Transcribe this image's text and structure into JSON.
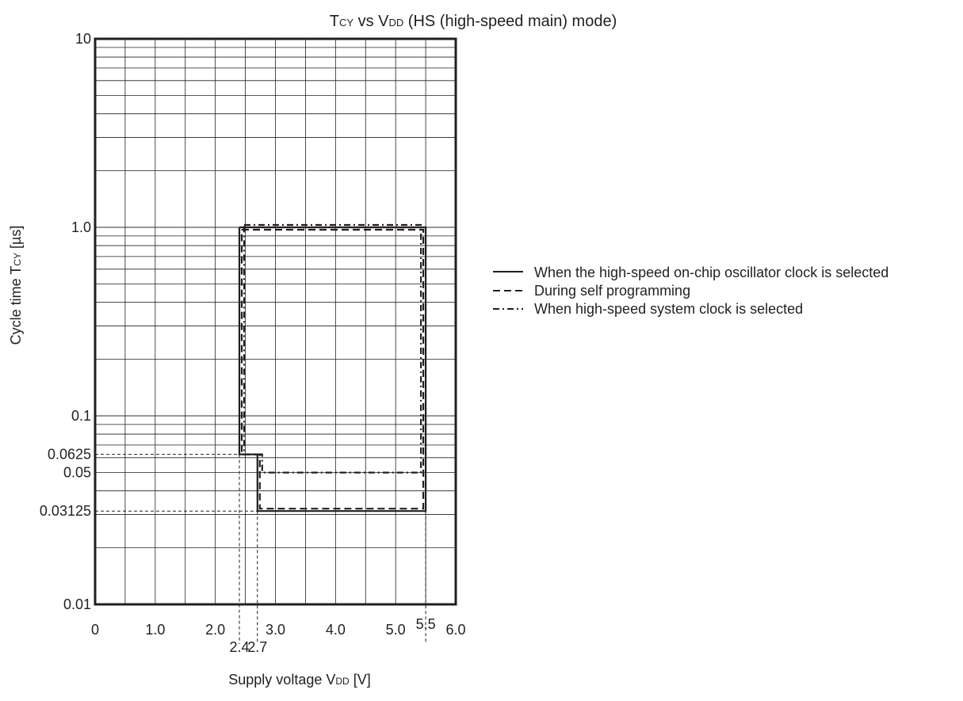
{
  "chart_data": {
    "type": "line",
    "title": {
      "t": "T",
      "t_sub": "CY",
      "vs": " vs V",
      "v_sub": "DD",
      "rest": " (HS (high-speed main) mode)"
    },
    "ylabel": {
      "main": "Cycle time T",
      "sub": "CY",
      "unit": " [µs]"
    },
    "xlabel": {
      "main": "Supply voltage V",
      "sub": "DD",
      "unit": " [V]"
    },
    "x_scale": "linear",
    "y_scale": "log",
    "xlim": [
      0,
      6.0
    ],
    "ylim": [
      0.01,
      10
    ],
    "grid": true,
    "legend_position": "right",
    "x_ticks": [
      {
        "v": 0,
        "label": "0"
      },
      {
        "v": 1.0,
        "label": "1.0"
      },
      {
        "v": 2.0,
        "label": "2.0"
      },
      {
        "v": 3.0,
        "label": "3.0"
      },
      {
        "v": 4.0,
        "label": "4.0"
      },
      {
        "v": 5.0,
        "label": "5.0"
      },
      {
        "v": 6.0,
        "label": "6.0"
      }
    ],
    "x_markers": [
      {
        "v": 2.4,
        "label": "2.4"
      },
      {
        "v": 2.7,
        "label": "2.7"
      },
      {
        "v": 5.5,
        "label": "5.5"
      }
    ],
    "y_ticks": [
      {
        "v": 0.01,
        "label": "0.01"
      },
      {
        "v": 0.1,
        "label": "0.1"
      },
      {
        "v": 1.0,
        "label": "1.0"
      },
      {
        "v": 10,
        "label": "10"
      }
    ],
    "y_markers": [
      {
        "v": 0.0625,
        "label": "0.0625"
      },
      {
        "v": 0.05,
        "label": "0.05"
      },
      {
        "v": 0.03125,
        "label": "0.03125"
      }
    ],
    "series": [
      {
        "name": "When the high-speed on-chip oscillator clock is selected",
        "style": "solid",
        "points": [
          [
            2.4,
            1.0
          ],
          [
            5.5,
            1.0
          ],
          [
            5.5,
            0.03125
          ],
          [
            2.7,
            0.03125
          ],
          [
            2.7,
            0.0625
          ],
          [
            2.4,
            0.0625
          ],
          [
            2.4,
            1.0
          ]
        ]
      },
      {
        "name": "During self programming",
        "style": "dashed",
        "points": [
          [
            2.4,
            1.0
          ],
          [
            5.5,
            1.0
          ],
          [
            5.5,
            0.03125
          ],
          [
            2.7,
            0.03125
          ],
          [
            2.7,
            0.0625
          ],
          [
            2.4,
            0.0625
          ],
          [
            2.4,
            1.0
          ]
        ]
      },
      {
        "name": "When high-speed system clock is selected",
        "style": "dashdot",
        "points": [
          [
            2.4,
            1.0
          ],
          [
            5.5,
            1.0
          ],
          [
            5.5,
            0.05
          ],
          [
            2.7,
            0.05
          ],
          [
            2.7,
            0.0625
          ],
          [
            2.4,
            0.0625
          ],
          [
            2.4,
            1.0
          ]
        ]
      }
    ]
  }
}
